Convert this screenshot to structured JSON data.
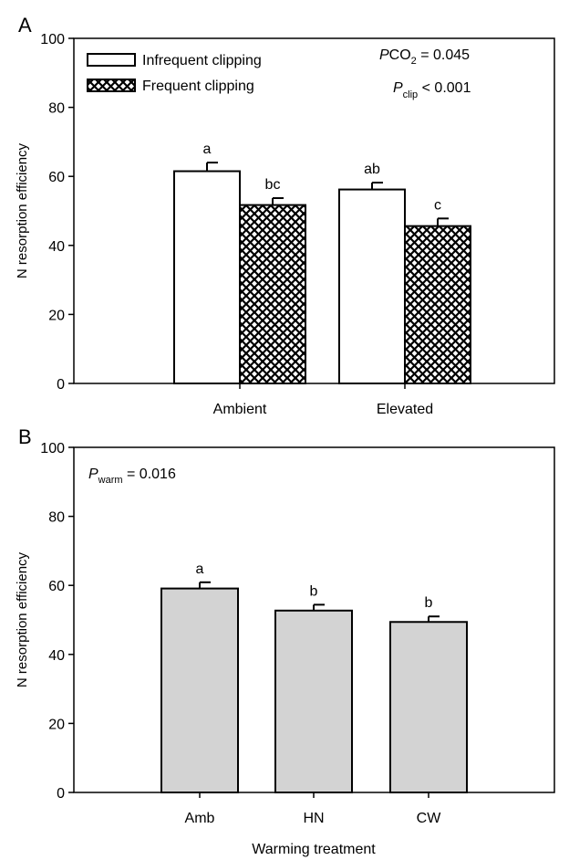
{
  "chart_data": [
    {
      "panel_label": "A",
      "type": "bar",
      "categories": [
        "Ambient",
        "Elevated"
      ],
      "series": [
        {
          "name": "Infrequent clipping",
          "fill": "#ffffff",
          "pattern": "none",
          "values": [
            61.5,
            56.2
          ],
          "errors": [
            2.5,
            2.0
          ],
          "letters": [
            "a",
            "ab"
          ]
        },
        {
          "name": "Frequent clipping",
          "fill": "#ffffff",
          "pattern": "crosshatch",
          "values": [
            51.7,
            45.6
          ],
          "errors": [
            2.0,
            2.2
          ],
          "letters": [
            "bc",
            "c"
          ]
        }
      ],
      "xlabel": "",
      "ylabel": "N resorption efficiency",
      "ylim": [
        0,
        100
      ],
      "yticks": [
        "0",
        "20",
        "40",
        "60",
        "80",
        "100"
      ],
      "grid": false,
      "legend_position": "top-left",
      "stats": [
        {
          "main": "P",
          "sub_or_script": "CO",
          "tail": "2",
          "value": " = 0.045",
          "layout": "italic-P-then-CO2"
        },
        {
          "main": "P",
          "sub_or_script": "clip",
          "tail": "",
          "value": " < 0.001",
          "layout": "subscript"
        }
      ]
    },
    {
      "panel_label": "B",
      "type": "bar",
      "categories": [
        "Amb",
        "HN",
        "CW"
      ],
      "series": [
        {
          "fill": "#d3d3d3",
          "values": [
            59.1,
            52.7,
            49.4
          ],
          "errors": [
            1.8,
            1.7,
            1.6
          ],
          "letters": [
            "a",
            "b",
            "b"
          ]
        }
      ],
      "xlabel": "Warming treatment",
      "ylabel": "N resorption efficiency",
      "ylim": [
        0,
        100
      ],
      "yticks": [
        "0",
        "20",
        "40",
        "60",
        "80",
        "100"
      ],
      "grid": false,
      "stats": [
        {
          "main": "P",
          "sub_or_script": "warm",
          "tail": "",
          "value": " = 0.016",
          "layout": "subscript"
        }
      ]
    }
  ]
}
